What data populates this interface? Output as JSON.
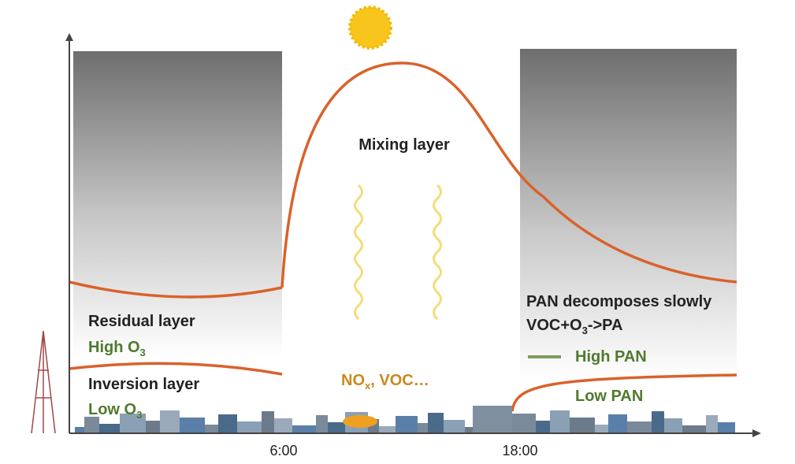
{
  "diagram": {
    "labels": {
      "mixing_layer": "Mixing layer",
      "residual_layer": "Residual layer",
      "high_o3": {
        "text": "High O",
        "sub": "3"
      },
      "inversion_layer": "Inversion layer",
      "low_o3": {
        "text": "Low O",
        "sub": "3"
      },
      "nox_voc": {
        "text": "NO",
        "sub": "x",
        "after": ", VOC…"
      },
      "pan_decomposes": "PAN decomposes slowly",
      "reaction": {
        "text": "VOC+O",
        "sub": "3",
        "after": "->PA"
      },
      "high_pan": "High PAN",
      "low_pan": "Low PAN"
    },
    "time_axis": [
      "6:00",
      "18:00"
    ]
  }
}
